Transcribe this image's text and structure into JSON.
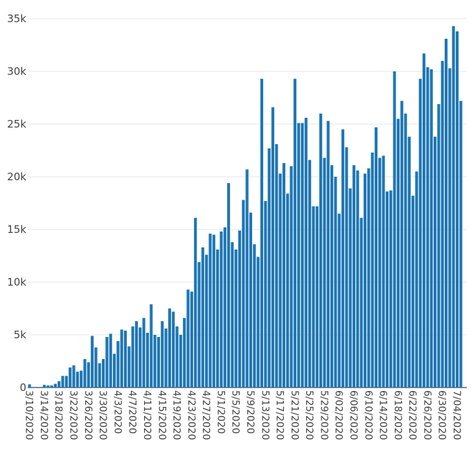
{
  "chart_data": {
    "type": "bar",
    "title": "",
    "xlabel": "",
    "ylabel": "",
    "ylim": [
      0,
      35000
    ],
    "y_ticks": [
      0,
      5000,
      10000,
      15000,
      20000,
      25000,
      30000,
      35000
    ],
    "y_tick_labels": [
      "0",
      "5k",
      "10k",
      "15k",
      "20k",
      "25k",
      "30k",
      "35k"
    ],
    "x_tick_labels": [
      "3/10/2020",
      "3/14/2020",
      "3/18/2020",
      "3/22/2020",
      "3/26/2020",
      "3/30/2020",
      "4/3/2020",
      "4/7/2020",
      "4/11/2020",
      "4/15/2020",
      "4/19/2020",
      "4/23/2020",
      "4/27/2020",
      "5/1/2020",
      "5/5/2020",
      "5/9/2020",
      "5/13/2020",
      "5/17/2020",
      "5/21/2020",
      "5/25/2020",
      "5/29/2020",
      "6/02/2020",
      "6/06/2020",
      "6/10/2020",
      "6/14/2020",
      "6/18/2020",
      "6/22/2020",
      "6/26/2020",
      "6/30/2020",
      "7/04/2020"
    ],
    "grid": true,
    "legend": "none",
    "color": "#1f77b4",
    "start_date": "3/10/2020",
    "values": [
      300,
      50,
      50,
      50,
      250,
      200,
      200,
      350,
      600,
      1100,
      1100,
      1900,
      2100,
      1500,
      1600,
      2700,
      2400,
      4900,
      3800,
      2300,
      2700,
      4800,
      5100,
      3200,
      4400,
      5500,
      5400,
      3900,
      5800,
      6300,
      5700,
      6600,
      5200,
      7900,
      5000,
      4800,
      6300,
      5600,
      7500,
      7200,
      5800,
      5000,
      6600,
      9300,
      9100,
      16100,
      11900,
      13300,
      12600,
      14600,
      14500,
      13100,
      14800,
      15200,
      19400,
      13800,
      13100,
      14900,
      17800,
      20700,
      16600,
      13600,
      12400,
      29300,
      17700,
      22700,
      26600,
      23100,
      20300,
      21300,
      18400,
      21000,
      29300,
      25100,
      25100,
      25600,
      21600,
      17200,
      17200,
      26000,
      21800,
      25300,
      21100,
      20000,
      16500,
      24500,
      22800,
      18900,
      21100,
      20600,
      16100,
      20300,
      20800,
      22300,
      24700,
      21800,
      22000,
      18600,
      18700,
      30000,
      25500,
      27200,
      26000,
      23800,
      18200,
      20500,
      29300,
      31700,
      30400,
      30200,
      23800,
      26900,
      31000,
      33100,
      30300,
      34300,
      33800,
      27200
    ]
  }
}
